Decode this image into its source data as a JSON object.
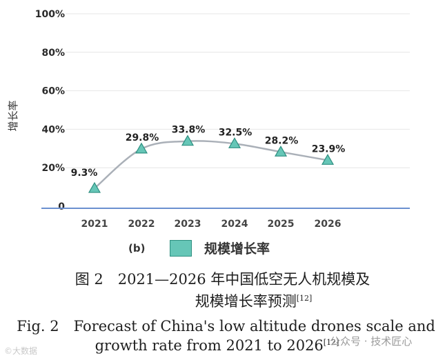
{
  "chart_data": {
    "type": "line",
    "ylabel": "增长率",
    "y_ticks": [
      "100%",
      "80%",
      "60%",
      "40%",
      "20%",
      "0"
    ],
    "y_tick_values": [
      100,
      80,
      60,
      40,
      20,
      0
    ],
    "ylim": [
      0,
      100
    ],
    "categories": [
      "2021",
      "2022",
      "2023",
      "2024",
      "2025",
      "2026"
    ],
    "series": [
      {
        "name": "规模增长率",
        "values": [
          9.3,
          29.8,
          33.8,
          32.5,
          28.2,
          23.9
        ],
        "labels": [
          "9.3%",
          "29.8%",
          "33.8%",
          "32.5%",
          "28.2%",
          "23.9%"
        ]
      }
    ],
    "grid": true,
    "legend_position": "bottom",
    "colors": {
      "line": "#aab0b8",
      "marker_fill": "#66c6b7",
      "marker_stroke": "#2d8f80",
      "axis": "#6a8fcf",
      "grid": "#e6e6e6"
    }
  },
  "legend": {
    "tag": "(b)",
    "label": "规模增长率"
  },
  "caption": {
    "zh_line1": "图 2　2021—2026 年中国低空无人机规模及",
    "zh_line2": "规模增长率预测",
    "en_line1": "Fig. 2　Forecast of China's low altitude drones scale and",
    "en_line2": "growth rate from 2021 to 2026",
    "ref": "[12]"
  },
  "watermarks": {
    "left": "©大数据",
    "right": "公众号 · 技术匠心"
  }
}
